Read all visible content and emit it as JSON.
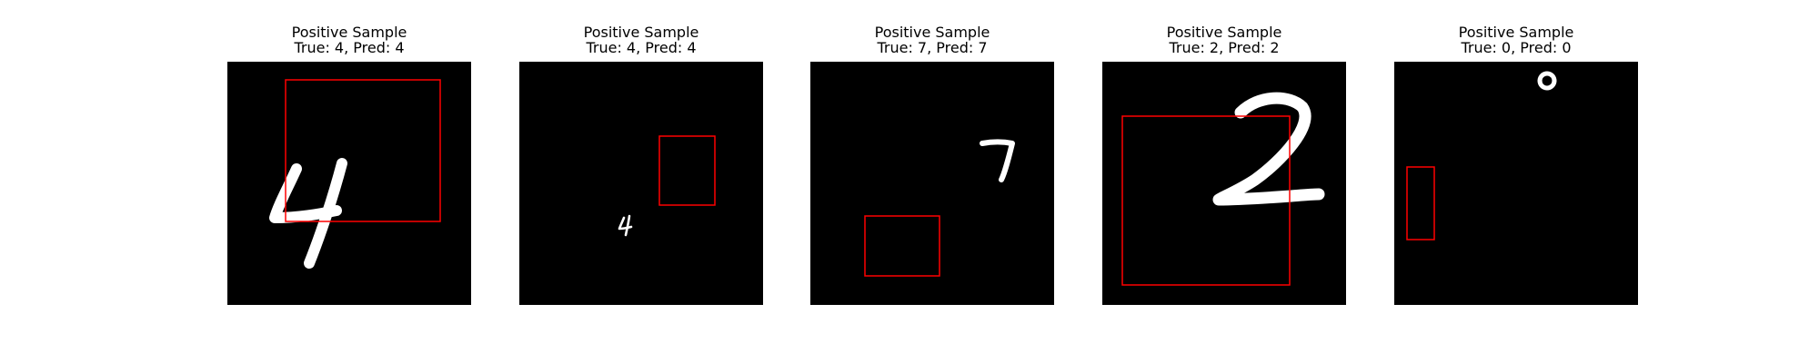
{
  "figure": {
    "panels": [
      {
        "heading": "Positive Sample",
        "caption": "True: 4, Pred: 4",
        "true_label": 4,
        "pred_label": 4,
        "digit_glyph": "4"
      },
      {
        "heading": "Positive Sample",
        "caption": "True: 4, Pred: 4",
        "true_label": 4,
        "pred_label": 4,
        "digit_glyph": "4"
      },
      {
        "heading": "Positive Sample",
        "caption": "True: 7, Pred: 7",
        "true_label": 7,
        "pred_label": 7,
        "digit_glyph": "7"
      },
      {
        "heading": "Positive Sample",
        "caption": "True: 2, Pred: 2",
        "true_label": 2,
        "pred_label": 2,
        "digit_glyph": "2"
      },
      {
        "heading": "Positive Sample",
        "caption": "True: 0, Pred: 0",
        "true_label": 0,
        "pred_label": 0,
        "digit_glyph": "0"
      }
    ],
    "colors": {
      "background": "#000000",
      "digit": "#ffffff",
      "box": "#ff0000"
    }
  }
}
